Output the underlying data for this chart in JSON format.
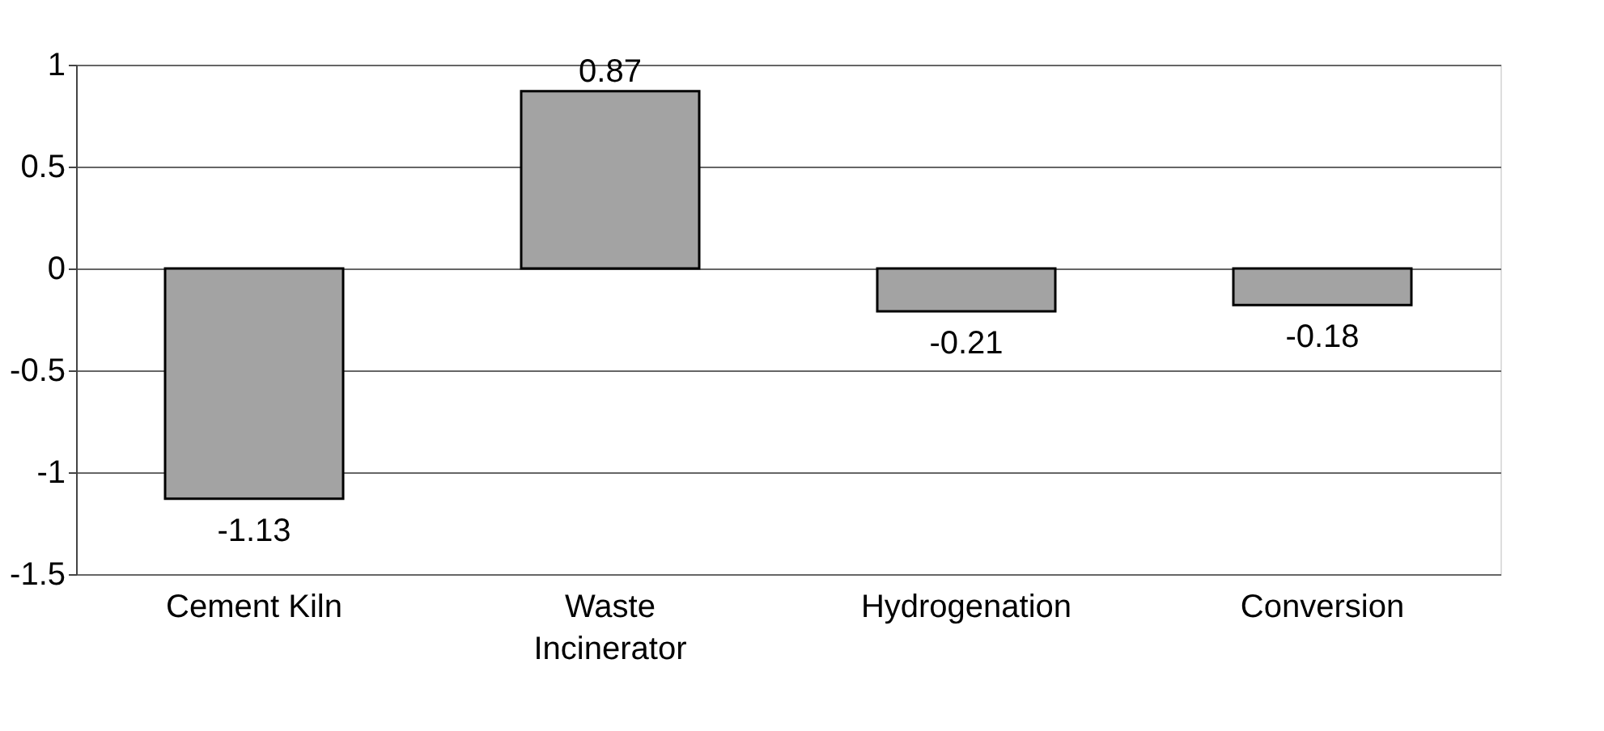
{
  "chart_data": {
    "type": "bar",
    "categories": [
      "Cement Kiln",
      "Waste Incinerator",
      "Hydrogenation",
      "Conversion"
    ],
    "values": [
      -1.13,
      0.87,
      -0.21,
      -0.18
    ],
    "color": "#a3a3a3",
    "ylim": [
      -1.5,
      1
    ],
    "yticks": [
      -1.5,
      -1,
      -0.5,
      0,
      0.5,
      1
    ],
    "grid": "y",
    "data_labels": true
  }
}
